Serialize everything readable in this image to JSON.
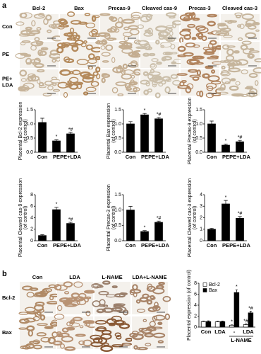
{
  "panels": {
    "a": {
      "label": "a",
      "columns": [
        "Bcl-2",
        "Bax",
        "Precas-9",
        "Cleaved cas-9",
        "Precas-3",
        "Cleaved cas-3"
      ],
      "rows": [
        [
          "Con"
        ],
        [
          "PE"
        ],
        [
          "PE+",
          "LDA"
        ]
      ]
    },
    "b": {
      "label": "b",
      "columns": [
        "Con",
        "LDA",
        "L-NAME",
        "LDA+L-NAME"
      ],
      "rows": [
        [
          "Bcl-2"
        ],
        [
          "Bax"
        ]
      ]
    }
  },
  "chart_data": [
    {
      "type": "bar",
      "ylabel": [
        "Placental Bcl-2 expression",
        "(of control)"
      ],
      "categories": [
        "Con",
        "PE",
        "PE+LDA"
      ],
      "values": [
        1.05,
        0.4,
        0.65
      ],
      "errors": [
        0.15,
        0.04,
        0.05
      ],
      "annotations": [
        null,
        "*",
        "*#"
      ],
      "color": "#000000",
      "ylim": [
        0,
        1.5
      ],
      "yticks": [
        {
          "value": 0,
          "label": "0.0"
        },
        {
          "value": 0.5,
          "label": "0.5"
        },
        {
          "value": 1,
          "label": "1.0"
        },
        {
          "value": 1.5,
          "label": "1.5"
        }
      ]
    },
    {
      "type": "bar",
      "ylabel": [
        "Placental Bax expression",
        "(of control)"
      ],
      "categories": [
        "Con",
        "PE",
        "PE+LDA"
      ],
      "values": [
        1.0,
        1.32,
        1.18
      ],
      "errors": [
        0.08,
        0.05,
        0.05
      ],
      "annotations": [
        null,
        "*",
        "*#"
      ],
      "color": "#000000",
      "ylim": [
        0,
        1.5
      ],
      "yticks": [
        {
          "value": 0,
          "label": "0.0"
        },
        {
          "value": 0.5,
          "label": "0.5"
        },
        {
          "value": 1,
          "label": "1.0"
        },
        {
          "value": 1.5,
          "label": "1.5"
        }
      ]
    },
    {
      "type": "bar",
      "ylabel": [
        "Placental Precas-9 expression",
        "(of control)"
      ],
      "categories": [
        "Con",
        "PE",
        "PE+LDA"
      ],
      "values": [
        1.0,
        0.25,
        0.37
      ],
      "errors": [
        0.1,
        0.04,
        0.05
      ],
      "annotations": [
        null,
        "*",
        "*#"
      ],
      "color": "#000000",
      "ylim": [
        0,
        1.5
      ],
      "yticks": [
        {
          "value": 0,
          "label": "0.0"
        },
        {
          "value": 0.5,
          "label": "0.5"
        },
        {
          "value": 1,
          "label": "1.0"
        },
        {
          "value": 1.5,
          "label": "1.5"
        }
      ]
    },
    {
      "type": "bar",
      "ylabel": [
        "Placental Cleaved cas-9 expression",
        "(of control)"
      ],
      "categories": [
        "Con",
        "PE",
        "PE+LDA"
      ],
      "values": [
        0.9,
        5.4,
        3.0
      ],
      "errors": [
        0.15,
        0.4,
        0.2
      ],
      "annotations": [
        null,
        "*",
        "*#"
      ],
      "color": "#000000",
      "ylim": [
        0,
        8
      ],
      "yticks": [
        0,
        2,
        4,
        6,
        8
      ]
    },
    {
      "type": "bar",
      "ylabel": [
        "Placental Precas-3 expression",
        "(of control)"
      ],
      "categories": [
        "Con",
        "PE",
        "PE+LDA"
      ],
      "values": [
        1.0,
        0.3,
        0.6
      ],
      "errors": [
        0.12,
        0.03,
        0.04
      ],
      "annotations": [
        null,
        "*",
        "*#"
      ],
      "color": "#000000",
      "ylim": [
        0,
        1.5
      ],
      "yticks": [
        {
          "value": 0,
          "label": "0.0"
        },
        {
          "value": 0.5,
          "label": "0.5"
        },
        {
          "value": 1,
          "label": "1.0"
        },
        {
          "value": 1.5,
          "label": "1.5"
        }
      ]
    },
    {
      "type": "bar",
      "ylabel": [
        "Placental Cleaved cas-3 expression",
        "(of control)"
      ],
      "categories": [
        "Con",
        "PE",
        "PE+LDA"
      ],
      "values": [
        1.0,
        3.2,
        1.95
      ],
      "errors": [
        0.08,
        0.3,
        0.15
      ],
      "annotations": [
        null,
        "*",
        "*#"
      ],
      "color": "#000000",
      "ylim": [
        0,
        4
      ],
      "yticks": [
        0,
        1,
        2,
        3,
        4
      ]
    },
    {
      "type": "bar",
      "ylabel": [
        "Placental expression (of control)"
      ],
      "categories": [
        "Con",
        "LDA",
        "-",
        "LDA"
      ],
      "group_label": "L-NAME",
      "legend": "top-left",
      "series": [
        {
          "name": "Bcl-2",
          "color": "#ffffff",
          "values": [
            1.0,
            0.95,
            0.35,
            0.45
          ],
          "errors": [
            0.1,
            0.1,
            0.05,
            0.1
          ],
          "annotations": [
            null,
            null,
            "*",
            "*#"
          ]
        },
        {
          "name": "Bax",
          "color": "#000000",
          "values": [
            1.0,
            1.0,
            6.3,
            2.6
          ],
          "errors": [
            0.15,
            0.1,
            0.5,
            0.3
          ],
          "annotations": [
            null,
            null,
            "*",
            "*#"
          ]
        }
      ],
      "ylim": [
        0,
        8
      ],
      "yticks": [
        0,
        2,
        4,
        6,
        8
      ]
    }
  ]
}
